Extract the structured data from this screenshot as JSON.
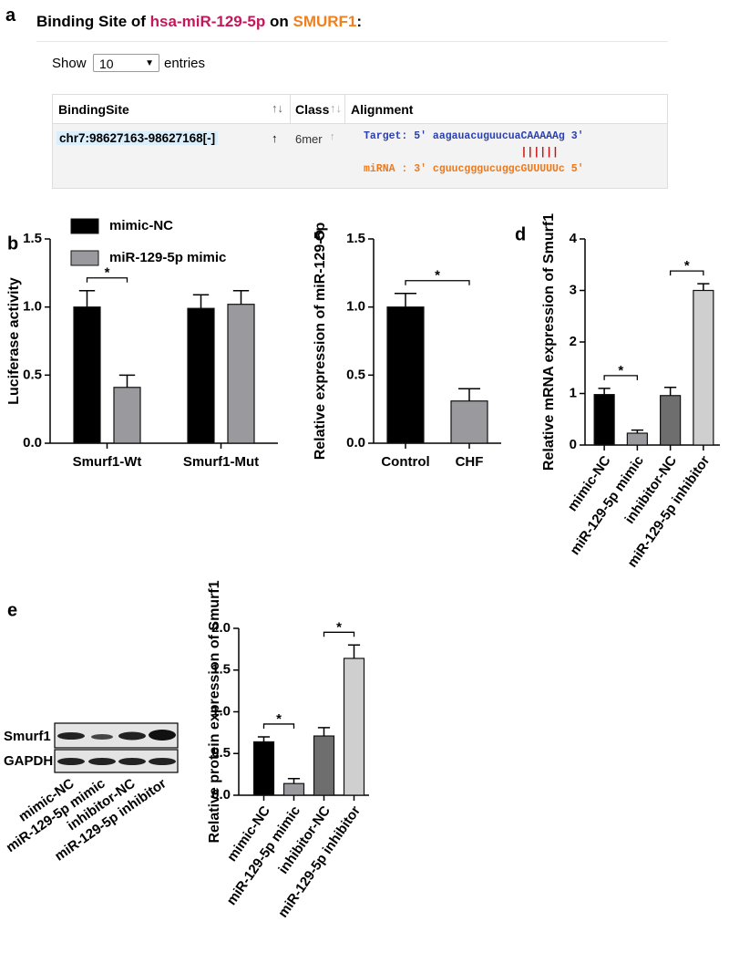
{
  "panel_a": {
    "panel": "a",
    "title": {
      "prefix": "Binding Site of ",
      "mirna": "hsa-miR-129-5p",
      "mid": " on ",
      "gene": "SMURF1",
      "suffix": ":"
    },
    "show": "Show",
    "entries_value": "10",
    "entries": "entries",
    "table": {
      "headers": [
        "BindingSite",
        "Class",
        "Alignment"
      ],
      "rows": [
        [
          "chr7:98627163-98627168[-]",
          "6mer",
          [
            "Target: 5' aagauacuguucuaCAAAAAg 3'",
            "||||||",
            "miRNA : 3' cguucgggucuggcGUUUUUc 5'"
          ]
        ]
      ]
    }
  },
  "chart_data": [
    {
      "type": "bar",
      "panel": "b",
      "ylabel": "Luciferase activity",
      "categories": [
        "Smurf1-Wt",
        "Smurf1-Mut"
      ],
      "series": [
        {
          "name": "mimic-NC",
          "color": "#000000",
          "values": [
            1.0,
            0.99
          ],
          "errors": [
            0.12,
            0.1
          ]
        },
        {
          "name": "miR-129-5p mimic",
          "color": "#9a9a9e",
          "values": [
            0.41,
            1.02
          ],
          "errors": [
            0.09,
            0.1
          ]
        }
      ],
      "ylim": [
        0,
        1.5
      ],
      "yticks": [
        {
          "value": 0,
          "label": "0.0"
        },
        {
          "value": 0.5,
          "label": "0.5"
        },
        {
          "value": 1,
          "label": "1.0"
        },
        {
          "value": 1.5,
          "label": "1.5"
        }
      ],
      "annotations": [
        {
          "text": "*",
          "category": "Smurf1-Wt"
        }
      ]
    },
    {
      "type": "bar",
      "panel": "c",
      "ylabel": "Relative expression of miR-129-5p",
      "categories": [
        "Control",
        "CHF"
      ],
      "series": [
        {
          "colors": [
            "#000000",
            "#9a9a9e"
          ],
          "values": [
            1.0,
            0.31
          ],
          "errors": [
            0.1,
            0.09
          ]
        }
      ],
      "ylim": [
        0,
        1.5
      ],
      "yticks": [
        {
          "value": 0,
          "label": "0.0"
        },
        {
          "value": 0.5,
          "label": "0.5"
        },
        {
          "value": 1,
          "label": "1.0"
        },
        {
          "value": 1.5,
          "label": "1.5"
        }
      ],
      "annotations": [
        {
          "text": "*",
          "between": [
            "Control",
            "CHF"
          ]
        }
      ]
    },
    {
      "type": "bar",
      "panel": "d",
      "ylabel": "Relative mRNA expression of Smurf1",
      "categories": [
        "mimic-NC",
        "miR-129-5p mimic",
        "inhibitor-NC",
        "miR-129-5p inhibitor"
      ],
      "series": [
        {
          "colors": [
            "#000000",
            "#9a9a9e",
            "#6e6e6e",
            "#cfcfcf"
          ],
          "values": [
            0.98,
            0.23,
            0.96,
            3.0
          ],
          "errors": [
            0.12,
            0.06,
            0.16,
            0.13
          ]
        }
      ],
      "ylim": [
        0,
        4
      ],
      "yticks": [
        0,
        1,
        2,
        3,
        4
      ],
      "annotations": [
        {
          "text": "*",
          "between": [
            "mimic-NC",
            "miR-129-5p mimic"
          ]
        },
        {
          "text": "*",
          "between": [
            "inhibitor-NC",
            "miR-129-5p inhibitor"
          ]
        }
      ]
    },
    {
      "type": "bar",
      "panel": "e",
      "ylabel": "Relative protein expression of Smurf1",
      "categories": [
        "mimic-NC",
        "miR-129-5p mimic",
        "inhibitor-NC",
        "miR-129-5p inhibitor"
      ],
      "series": [
        {
          "colors": [
            "#000000",
            "#9a9a9e",
            "#6e6e6e",
            "#cfcfcf"
          ],
          "values": [
            0.64,
            0.14,
            0.71,
            1.64
          ],
          "errors": [
            0.06,
            0.06,
            0.1,
            0.16
          ]
        }
      ],
      "ylim": [
        0,
        2
      ],
      "yticks": [
        {
          "value": 0,
          "label": "0.0"
        },
        {
          "value": 0.5,
          "label": "0.5"
        },
        {
          "value": 1,
          "label": "1.0"
        },
        {
          "value": 1.5,
          "label": "1.5"
        },
        {
          "value": 2,
          "label": "2.0"
        }
      ],
      "annotations": [
        {
          "text": "*",
          "between": [
            "mimic-NC",
            "miR-129-5p mimic"
          ]
        },
        {
          "text": "*",
          "between": [
            "inhibitor-NC",
            "miR-129-5p inhibitor"
          ]
        }
      ]
    }
  ],
  "blot": {
    "rows": [
      "Smurf1",
      "GAPDH"
    ],
    "lanes": [
      "mimic-NC",
      "miR-129-5p mimic",
      "inhibitor-NC",
      "miR-129-5p inhibitor"
    ]
  }
}
